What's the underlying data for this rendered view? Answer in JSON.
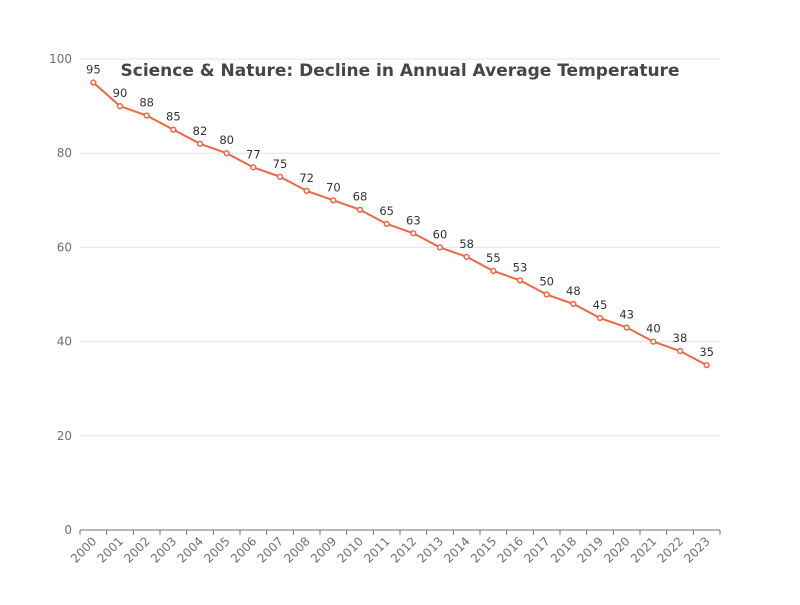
{
  "chart_data": {
    "type": "line",
    "title": "Science & Nature: Decline in Annual Average Temperature",
    "xlabel": "",
    "ylabel": "",
    "x": [
      "2000",
      "2001",
      "2002",
      "2003",
      "2004",
      "2005",
      "2006",
      "2007",
      "2008",
      "2009",
      "2010",
      "2011",
      "2012",
      "2013",
      "2014",
      "2015",
      "2016",
      "2017",
      "2018",
      "2019",
      "2020",
      "2021",
      "2022",
      "2023"
    ],
    "series": [
      {
        "values": [
          95,
          90,
          88,
          85,
          82,
          80,
          77,
          75,
          72,
          70,
          68,
          65,
          63,
          60,
          58,
          55,
          53,
          50,
          48,
          45,
          43,
          40,
          38,
          35
        ]
      }
    ],
    "ylim": [
      0,
      100
    ],
    "yticks": [
      0,
      20,
      40,
      60,
      80,
      100
    ],
    "grid": true,
    "legend": "none",
    "line_color": "#ee6644"
  }
}
